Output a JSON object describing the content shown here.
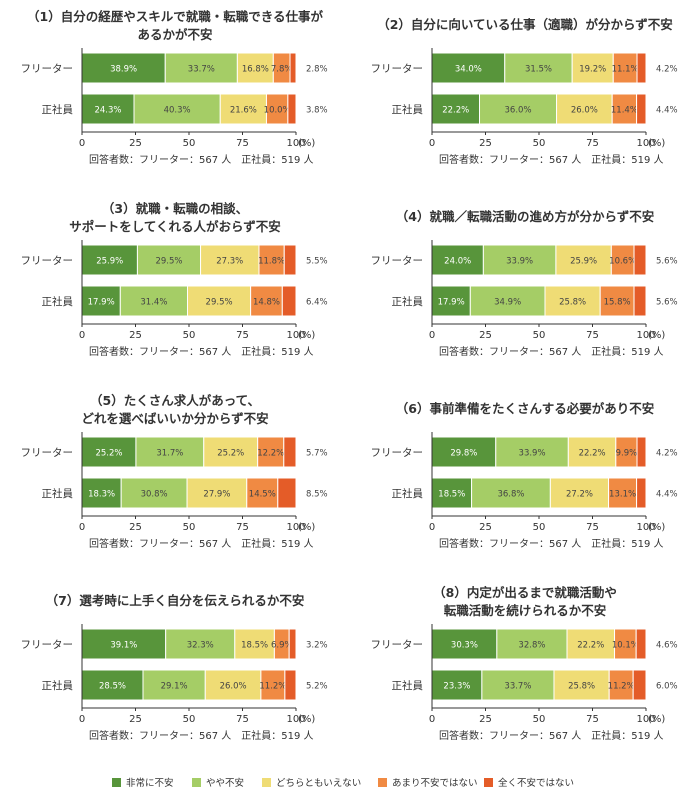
{
  "chart_data": [
    {
      "type": "bar",
      "title": "（1）自分の経歴やスキルで就職・転職できる仕事が\nあるかが不安",
      "categories": [
        "フリーター",
        "正社員"
      ],
      "series": [
        {
          "name": "非常に不安",
          "values": [
            38.9,
            24.3
          ]
        },
        {
          "name": "やや不安",
          "values": [
            33.7,
            40.3
          ]
        },
        {
          "name": "どちらともいえない",
          "values": [
            16.8,
            21.6
          ]
        },
        {
          "name": "あまり不安ではない",
          "values": [
            7.8,
            10.0
          ]
        },
        {
          "name": "全く不安ではない",
          "values": [
            2.8,
            3.8
          ]
        }
      ],
      "xlim": [
        0,
        100
      ],
      "xticks": [
        "0",
        "25",
        "50",
        "75",
        "100"
      ],
      "unit": "(%)",
      "note": "回答者数：フリーター：567 人　正社員：519 人"
    },
    {
      "type": "bar",
      "title": "（2）自分に向いている仕事（適職）が分からず不安",
      "categories": [
        "フリーター",
        "正社員"
      ],
      "series": [
        {
          "name": "非常に不安",
          "values": [
            34.0,
            22.2
          ]
        },
        {
          "name": "やや不安",
          "values": [
            31.5,
            36.0
          ]
        },
        {
          "name": "どちらともいえない",
          "values": [
            19.2,
            26.0
          ]
        },
        {
          "name": "あまり不安ではない",
          "values": [
            11.1,
            11.4
          ]
        },
        {
          "name": "全く不安ではない",
          "values": [
            4.2,
            4.4
          ]
        }
      ],
      "xlim": [
        0,
        100
      ],
      "xticks": [
        "0",
        "25",
        "50",
        "75",
        "100"
      ],
      "unit": "(%)",
      "note": "回答者数：フリーター：567 人　正社員：519 人"
    },
    {
      "type": "bar",
      "title": "（3）就職・転職の相談、\nサポートをしてくれる人がおらず不安",
      "categories": [
        "フリーター",
        "正社員"
      ],
      "series": [
        {
          "name": "非常に不安",
          "values": [
            25.9,
            17.9
          ]
        },
        {
          "name": "やや不安",
          "values": [
            29.5,
            31.4
          ]
        },
        {
          "name": "どちらともいえない",
          "values": [
            27.3,
            29.5
          ]
        },
        {
          "name": "あまり不安ではない",
          "values": [
            11.8,
            14.8
          ]
        },
        {
          "name": "全く不安ではない",
          "values": [
            5.5,
            6.4
          ]
        }
      ],
      "xlim": [
        0,
        100
      ],
      "xticks": [
        "0",
        "25",
        "50",
        "75",
        "100"
      ],
      "unit": "(%)",
      "note": "回答者数：フリーター：567 人　正社員：519 人"
    },
    {
      "type": "bar",
      "title": "（4）就職／転職活動の進め方が分からず不安",
      "categories": [
        "フリーター",
        "正社員"
      ],
      "series": [
        {
          "name": "非常に不安",
          "values": [
            24.0,
            17.9
          ]
        },
        {
          "name": "やや不安",
          "values": [
            33.9,
            34.9
          ]
        },
        {
          "name": "どちらともいえない",
          "values": [
            25.9,
            25.8
          ]
        },
        {
          "name": "あまり不安ではない",
          "values": [
            10.6,
            15.8
          ]
        },
        {
          "name": "全く不安ではない",
          "values": [
            5.6,
            5.6
          ]
        }
      ],
      "xlim": [
        0,
        100
      ],
      "xticks": [
        "0",
        "25",
        "50",
        "75",
        "100"
      ],
      "unit": "(%)",
      "note": "回答者数：フリーター：567 人　正社員：519 人"
    },
    {
      "type": "bar",
      "title": "（5）たくさん求人があって、\nどれを選べばいいか分からず不安",
      "categories": [
        "フリーター",
        "正社員"
      ],
      "series": [
        {
          "name": "非常に不安",
          "values": [
            25.2,
            18.3
          ]
        },
        {
          "name": "やや不安",
          "values": [
            31.7,
            30.8
          ]
        },
        {
          "name": "どちらともいえない",
          "values": [
            25.2,
            27.9
          ]
        },
        {
          "name": "あまり不安ではない",
          "values": [
            12.2,
            14.5
          ]
        },
        {
          "name": "全く不安ではない",
          "values": [
            5.7,
            8.5
          ]
        }
      ],
      "xlim": [
        0,
        100
      ],
      "xticks": [
        "0",
        "25",
        "50",
        "75",
        "100"
      ],
      "unit": "(%)",
      "note": "回答者数：フリーター：567 人　正社員：519 人"
    },
    {
      "type": "bar",
      "title": "（6）事前準備をたくさんする必要があり不安",
      "categories": [
        "フリーター",
        "正社員"
      ],
      "series": [
        {
          "name": "非常に不安",
          "values": [
            29.8,
            18.5
          ]
        },
        {
          "name": "やや不安",
          "values": [
            33.9,
            36.8
          ]
        },
        {
          "name": "どちらともいえない",
          "values": [
            22.2,
            27.2
          ]
        },
        {
          "name": "あまり不安ではない",
          "values": [
            9.9,
            13.1
          ]
        },
        {
          "name": "全く不安ではない",
          "values": [
            4.2,
            4.4
          ]
        }
      ],
      "xlim": [
        0,
        100
      ],
      "xticks": [
        "0",
        "25",
        "50",
        "75",
        "100"
      ],
      "unit": "(%)",
      "note": "回答者数：フリーター：567 人　正社員：519 人"
    },
    {
      "type": "bar",
      "title": "（7）選考時に上手く自分を伝えられるか不安",
      "categories": [
        "フリーター",
        "正社員"
      ],
      "series": [
        {
          "name": "非常に不安",
          "values": [
            39.1,
            28.5
          ]
        },
        {
          "name": "やや不安",
          "values": [
            32.3,
            29.1
          ]
        },
        {
          "name": "どちらともいえない",
          "values": [
            18.5,
            26.0
          ]
        },
        {
          "name": "あまり不安ではない",
          "values": [
            6.9,
            11.2
          ]
        },
        {
          "name": "全く不安ではない",
          "values": [
            3.2,
            5.2
          ]
        }
      ],
      "xlim": [
        0,
        100
      ],
      "xticks": [
        "0",
        "25",
        "50",
        "75",
        "100"
      ],
      "unit": "(%)",
      "note": "回答者数：フリーター：567 人　正社員：519 人"
    },
    {
      "type": "bar",
      "title": "（8）内定が出るまで就職活動や\n転職活動を続けられるか不安",
      "categories": [
        "フリーター",
        "正社員"
      ],
      "series": [
        {
          "name": "非常に不安",
          "values": [
            30.3,
            23.3
          ]
        },
        {
          "name": "やや不安",
          "values": [
            32.8,
            33.7
          ]
        },
        {
          "name": "どちらともいえない",
          "values": [
            22.2,
            25.8
          ]
        },
        {
          "name": "あまり不安ではない",
          "values": [
            10.1,
            11.2
          ]
        },
        {
          "name": "全く不安ではない",
          "values": [
            4.6,
            6.0
          ]
        }
      ],
      "xlim": [
        0,
        100
      ],
      "xticks": [
        "0",
        "25",
        "50",
        "75",
        "100"
      ],
      "unit": "(%)",
      "note": "回答者数：フリーター：567 人　正社員：519 人"
    }
  ],
  "legend": [
    {
      "label": "非常に不安",
      "color": "#58953b"
    },
    {
      "label": "やや不安",
      "color": "#a5cd66"
    },
    {
      "label": "どちらともいえない",
      "color": "#efdc75"
    },
    {
      "label": "あまり不安ではない",
      "color": "#f08a43"
    },
    {
      "label": "全く不安ではない",
      "color": "#e45c28"
    }
  ],
  "colors": {
    "axis": "#333333",
    "divider": "#ffffff",
    "text": "#333333"
  }
}
